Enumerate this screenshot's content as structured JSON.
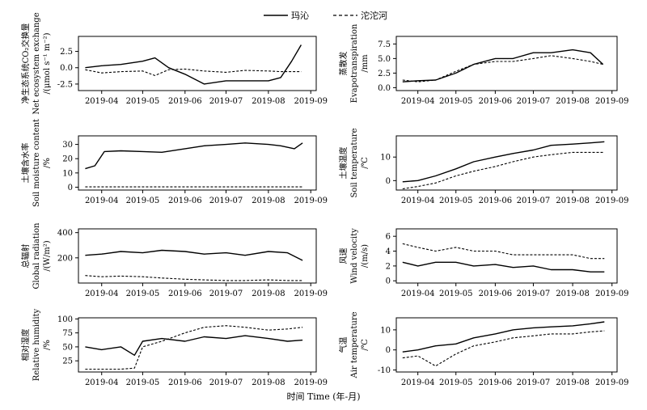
{
  "legend": {
    "series1": "玛沁",
    "series2": "沱沱河"
  },
  "xlabel": "时间 Time (年-月)",
  "chart_data": [
    {
      "type": "line",
      "ylabel_cn": "净生态系统CO₂交换量",
      "ylabel_en1": "Net ecosystem exchange",
      "ylabel_en2": "/(μmol s⁻¹ m⁻²)",
      "ylim": [
        -3.5,
        4.8
      ],
      "yticks": [
        -2.5,
        0.0,
        2.5
      ],
      "yticklabels": [
        "-2.5",
        "0.0",
        "2.5"
      ],
      "x": [
        "2019-03-20",
        "2019-04-01",
        "2019-04-15",
        "2019-05-01",
        "2019-05-10",
        "2019-05-20",
        "2019-06-01",
        "2019-06-15",
        "2019-07-01",
        "2019-07-15",
        "2019-08-01",
        "2019-08-10",
        "2019-08-18",
        "2019-08-25"
      ],
      "series": [
        {
          "name": "玛沁",
          "values": [
            0.0,
            0.3,
            0.5,
            1.0,
            1.5,
            0.0,
            -1.0,
            -2.5,
            -2.0,
            -2.0,
            -2.0,
            -1.5,
            1.0,
            3.5
          ]
        },
        {
          "name": "沱沱河",
          "values": [
            -0.3,
            -0.8,
            -0.6,
            -0.5,
            -1.2,
            -0.3,
            -0.2,
            -0.5,
            -0.7,
            -0.4,
            -0.5,
            -0.6,
            -0.6,
            -0.6
          ]
        }
      ]
    },
    {
      "type": "line",
      "ylabel_cn": "蒸散发",
      "ylabel_en1": "Evapotranspiration",
      "ylabel_en2": "/mm",
      "ylim": [
        -0.5,
        8.8
      ],
      "yticks": [
        0.0,
        2.5,
        5.0,
        7.5
      ],
      "yticklabels": [
        "0.0",
        "2.5",
        "5.0",
        "7.5"
      ],
      "x": [
        "2019-03-20",
        "2019-04-01",
        "2019-04-15",
        "2019-05-01",
        "2019-05-15",
        "2019-06-01",
        "2019-06-15",
        "2019-07-01",
        "2019-07-15",
        "2019-08-01",
        "2019-08-15",
        "2019-08-25"
      ],
      "series": [
        {
          "name": "玛沁",
          "values": [
            1.0,
            1.2,
            1.3,
            2.5,
            4.0,
            5.0,
            5.0,
            6.0,
            6.0,
            6.5,
            6.0,
            4.0
          ]
        },
        {
          "name": "沱沱河",
          "values": [
            1.3,
            1.0,
            1.3,
            2.8,
            4.0,
            4.5,
            4.5,
            5.0,
            5.5,
            5.0,
            4.5,
            4.0
          ]
        }
      ]
    },
    {
      "type": "line",
      "ylabel_cn": "土壤含水率",
      "ylabel_en1": "Soil moisture content",
      "ylabel_en2": "/%",
      "ylim": [
        -2,
        36
      ],
      "yticks": [
        0,
        10,
        20,
        30
      ],
      "yticklabels": [
        "0",
        "10",
        "20",
        "30"
      ],
      "x": [
        "2019-03-20",
        "2019-03-27",
        "2019-04-03",
        "2019-04-15",
        "2019-05-01",
        "2019-05-15",
        "2019-06-01",
        "2019-06-15",
        "2019-07-01",
        "2019-07-15",
        "2019-08-01",
        "2019-08-10",
        "2019-08-20",
        "2019-08-26"
      ],
      "series": [
        {
          "name": "玛沁",
          "values": [
            13,
            15,
            25,
            25.5,
            25,
            24.5,
            27,
            29,
            30,
            31,
            30,
            29,
            27,
            31
          ]
        },
        {
          "name": "沱沱河",
          "values": [
            0.2,
            0.2,
            0.2,
            0.2,
            0.2,
            0.2,
            0.2,
            0.2,
            0.2,
            0.2,
            0.2,
            0.2,
            0.2,
            0.2
          ]
        }
      ]
    },
    {
      "type": "line",
      "ylabel_cn": "土壤温度",
      "ylabel_en1": "Soil temperature",
      "ylabel_en2": "/℃",
      "ylim": [
        -4,
        19
      ],
      "yticks": [
        0,
        10
      ],
      "yticklabels": [
        "0",
        "10"
      ],
      "x": [
        "2019-03-20",
        "2019-04-01",
        "2019-04-15",
        "2019-05-01",
        "2019-05-15",
        "2019-06-01",
        "2019-06-15",
        "2019-07-01",
        "2019-07-15",
        "2019-08-01",
        "2019-08-15",
        "2019-08-26"
      ],
      "series": [
        {
          "name": "玛沁",
          "values": [
            -0.5,
            0.0,
            2.0,
            5.0,
            8.0,
            10.0,
            11.5,
            13.0,
            15.0,
            15.5,
            16.0,
            16.5
          ]
        },
        {
          "name": "沱沱河",
          "values": [
            -3.5,
            -2.5,
            -1.0,
            2.0,
            4.0,
            6.0,
            8.0,
            10.0,
            11.0,
            12.0,
            12.0,
            12.0
          ]
        }
      ]
    },
    {
      "type": "line",
      "ylabel_cn": "总辐射",
      "ylabel_en1": "Global radiation",
      "ylabel_en2": "/(W/m²)",
      "ylim": [
        0,
        430
      ],
      "yticks": [
        200,
        400
      ],
      "yticklabels": [
        "200",
        "400"
      ],
      "x": [
        "2019-03-20",
        "2019-04-01",
        "2019-04-15",
        "2019-05-01",
        "2019-05-15",
        "2019-06-01",
        "2019-06-15",
        "2019-07-01",
        "2019-07-15",
        "2019-08-01",
        "2019-08-15",
        "2019-08-26"
      ],
      "series": [
        {
          "name": "玛沁",
          "values": [
            220,
            230,
            250,
            240,
            260,
            250,
            230,
            240,
            220,
            250,
            240,
            180
          ]
        },
        {
          "name": "沱沱河",
          "values": [
            60,
            50,
            55,
            50,
            40,
            30,
            25,
            20,
            20,
            25,
            20,
            20
          ]
        }
      ]
    },
    {
      "type": "line",
      "ylabel_cn": "风速",
      "ylabel_en1": "Wind velocity",
      "ylabel_en2": "/(m/s)",
      "ylim": [
        -0.3,
        7
      ],
      "yticks": [
        0,
        2,
        4,
        6
      ],
      "yticklabels": [
        "0",
        "2",
        "4",
        "6"
      ],
      "x": [
        "2019-03-20",
        "2019-04-01",
        "2019-04-15",
        "2019-05-01",
        "2019-05-15",
        "2019-06-01",
        "2019-06-15",
        "2019-07-01",
        "2019-07-15",
        "2019-08-01",
        "2019-08-15",
        "2019-08-26"
      ],
      "series": [
        {
          "name": "玛沁",
          "values": [
            2.5,
            2.0,
            2.5,
            2.5,
            2.0,
            2.2,
            1.8,
            2.0,
            1.5,
            1.5,
            1.2,
            1.2
          ]
        },
        {
          "name": "沱沱河",
          "values": [
            5.0,
            4.5,
            4.0,
            4.5,
            4.0,
            4.0,
            3.5,
            3.5,
            3.5,
            3.5,
            3.0,
            3.0
          ]
        }
      ]
    },
    {
      "type": "line",
      "ylabel_cn": "相对湿度",
      "ylabel_en1": "Relative humidity",
      "ylabel_en2": "/%",
      "ylim": [
        5,
        102
      ],
      "yticks": [
        25,
        50,
        75,
        100
      ],
      "yticklabels": [
        "25",
        "50",
        "75",
        "100"
      ],
      "x": [
        "2019-03-20",
        "2019-04-01",
        "2019-04-15",
        "2019-04-25",
        "2019-05-01",
        "2019-05-15",
        "2019-06-01",
        "2019-06-15",
        "2019-07-01",
        "2019-07-15",
        "2019-08-01",
        "2019-08-15",
        "2019-08-26"
      ],
      "series": [
        {
          "name": "玛沁",
          "values": [
            50,
            45,
            50,
            35,
            60,
            65,
            60,
            68,
            65,
            70,
            65,
            60,
            62
          ]
        },
        {
          "name": "沱沱河",
          "values": [
            10,
            10,
            10,
            12,
            50,
            60,
            75,
            85,
            88,
            85,
            80,
            82,
            85
          ]
        }
      ]
    },
    {
      "type": "line",
      "ylabel_cn": "气温",
      "ylabel_en1": "Air temperature",
      "ylabel_en2": "/℃",
      "ylim": [
        -11,
        16
      ],
      "yticks": [
        -10,
        0,
        10
      ],
      "yticklabels": [
        "-10",
        "0",
        "10"
      ],
      "x": [
        "2019-03-20",
        "2019-04-01",
        "2019-04-15",
        "2019-05-01",
        "2019-05-15",
        "2019-06-01",
        "2019-06-15",
        "2019-07-01",
        "2019-07-15",
        "2019-08-01",
        "2019-08-15",
        "2019-08-26"
      ],
      "series": [
        {
          "name": "玛沁",
          "values": [
            -1.0,
            0.0,
            2.0,
            3.0,
            6.0,
            8.0,
            10.0,
            11.0,
            11.5,
            12.0,
            13.0,
            14.0
          ]
        },
        {
          "name": "沱沱河",
          "values": [
            -4.0,
            -3.0,
            -8.0,
            -2.0,
            2.0,
            4.0,
            6.0,
            7.0,
            8.0,
            8.0,
            9.0,
            9.5
          ]
        }
      ]
    }
  ],
  "xticks": [
    "2019-04",
    "2019-05",
    "2019-06",
    "2019-07",
    "2019-08",
    "2019-09"
  ]
}
